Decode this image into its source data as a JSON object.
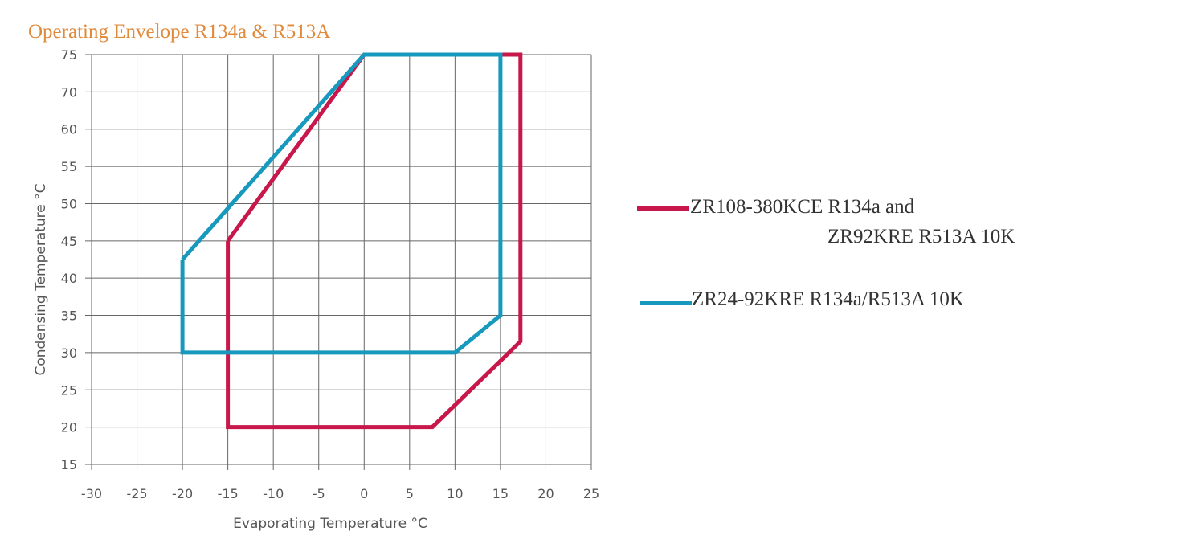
{
  "chart_data": {
    "type": "line",
    "title": "Operating Envelope R134a & R513A",
    "xlabel": "Evaporating  Temperature  °C",
    "ylabel": "Condensing Temperature °C",
    "xlim": [
      -30,
      25
    ],
    "ylim": [
      15,
      75
    ],
    "xticks": [
      -30,
      -25,
      -20,
      -15,
      -10,
      -5,
      0,
      5,
      10,
      15,
      20,
      25
    ],
    "yticks": [
      15,
      20,
      25,
      30,
      35,
      40,
      45,
      50,
      55,
      60,
      70,
      75
    ],
    "x_tick_labels": [
      "-30",
      "-25",
      "-20",
      "-15",
      "-10",
      "-5",
      "0",
      "5",
      "10",
      "15",
      "20",
      "25"
    ],
    "y_tick_labels": [
      "15",
      "20",
      "25",
      "30",
      "35",
      "40",
      "45",
      "50",
      "55",
      "60",
      "70",
      "75"
    ],
    "grid": true,
    "legend_position": "right",
    "series": [
      {
        "name": "ZR108-380KCE R134a and ZR92KRE R513A 10K",
        "legend_line1": "ZR108-380KCE R134a and",
        "legend_line2": "ZR92KRE R513A 10K",
        "color": "#c8174a",
        "points": [
          {
            "x": -15,
            "y": 45
          },
          {
            "x": 0,
            "y": 75
          },
          {
            "x": 17.2,
            "y": 75
          },
          {
            "x": 17.2,
            "y": 31.5
          },
          {
            "x": 7.5,
            "y": 20
          },
          {
            "x": -15,
            "y": 20
          },
          {
            "x": -15,
            "y": 45
          }
        ]
      },
      {
        "name": "ZR24-92KRE R134a/R513A 10K",
        "legend_line1": "ZR24-92KRE R134a/R513A 10K",
        "color": "#1798bd",
        "points": [
          {
            "x": -20,
            "y": 42.5
          },
          {
            "x": 0,
            "y": 75
          },
          {
            "x": 15,
            "y": 75
          },
          {
            "x": 15,
            "y": 35
          },
          {
            "x": 10,
            "y": 30
          },
          {
            "x": -20,
            "y": 30
          },
          {
            "x": -20,
            "y": 42.5
          }
        ]
      }
    ]
  },
  "colors": {
    "title": "#e08a3c",
    "grid": "#666666",
    "tick_text": "#555555",
    "axis_label": "#555555"
  }
}
